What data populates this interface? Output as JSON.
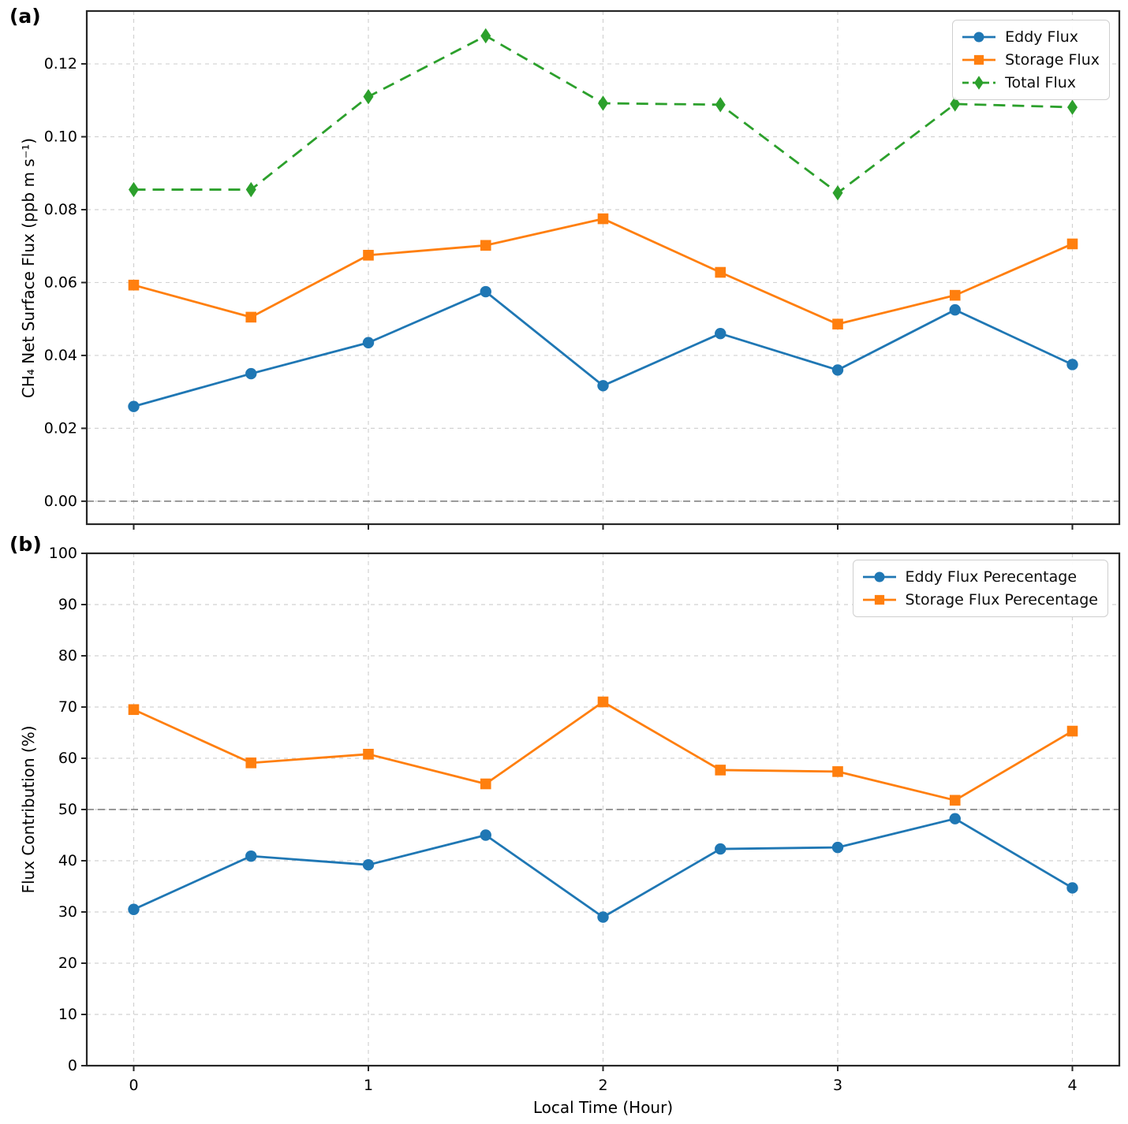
{
  "figure": {
    "panel_a_label": "(a)",
    "panel_b_label": "(b)",
    "background": "#ffffff",
    "colors": {
      "grid": "#d2d2d2",
      "ref_line": "#7a7a7a",
      "spine": "#262626",
      "text": "#000000",
      "legend_border": "#cfcfcf",
      "eddy_blue": "#1f77b4",
      "storage_orange": "#ff7f0e",
      "total_green": "#2ca02c"
    }
  },
  "chart_data": [
    {
      "type": "line",
      "panel": "a",
      "title": "",
      "xlabel": "",
      "ylabel": "CH₄ Net Surface Flux (ppb m s⁻¹)",
      "x": [
        0,
        0.5,
        1,
        1.5,
        2,
        2.5,
        3,
        3.5,
        4
      ],
      "series": [
        {
          "name": "Eddy Flux",
          "color": "#1f77b4",
          "marker": "circle",
          "line": "solid",
          "values": [
            0.026,
            0.035,
            0.0435,
            0.0575,
            0.0317,
            0.046,
            0.036,
            0.0525,
            0.0375
          ]
        },
        {
          "name": "Storage Flux",
          "color": "#ff7f0e",
          "marker": "square",
          "line": "solid",
          "values": [
            0.0593,
            0.0505,
            0.0675,
            0.0702,
            0.0775,
            0.0628,
            0.0486,
            0.0565,
            0.0706
          ]
        },
        {
          "name": "Total Flux",
          "color": "#2ca02c",
          "marker": "diamond",
          "line": "dashed",
          "values": [
            0.0855,
            0.0855,
            0.111,
            0.1277,
            0.1092,
            0.1088,
            0.0846,
            0.109,
            0.1081
          ]
        }
      ],
      "xlim": [
        -0.2,
        4.2
      ],
      "ylim": [
        -0.0063,
        0.1345
      ],
      "xticks": [
        0,
        1,
        2,
        3,
        4
      ],
      "xtick_labels": null,
      "yticks": [
        0,
        0.02,
        0.04,
        0.06,
        0.08,
        0.1,
        0.12
      ],
      "ytick_labels": [
        "0.00",
        "0.02",
        "0.04",
        "0.06",
        "0.08",
        "0.10",
        "0.12"
      ],
      "ref_line_y": 0,
      "grid": true,
      "legend_position": "upper right"
    },
    {
      "type": "line",
      "panel": "b",
      "title": "",
      "xlabel": "Local Time (Hour)",
      "ylabel": "Flux Contribution (%)",
      "x": [
        0,
        0.5,
        1,
        1.5,
        2,
        2.5,
        3,
        3.5,
        4
      ],
      "series": [
        {
          "name": "Eddy Flux Perecentage",
          "color": "#1f77b4",
          "marker": "circle",
          "line": "solid",
          "values": [
            30.5,
            40.9,
            39.2,
            45.0,
            29.0,
            42.3,
            42.6,
            48.2,
            34.7
          ]
        },
        {
          "name": "Storage Flux Perecentage",
          "color": "#ff7f0e",
          "marker": "square",
          "line": "solid",
          "values": [
            69.5,
            59.1,
            60.8,
            55.0,
            71.0,
            57.7,
            57.4,
            51.8,
            65.3
          ]
        }
      ],
      "xlim": [
        -0.2,
        4.2
      ],
      "ylim": [
        0,
        100
      ],
      "xticks": [
        0,
        1,
        2,
        3,
        4
      ],
      "xtick_labels": [
        "0",
        "1",
        "2",
        "3",
        "4"
      ],
      "yticks": [
        0,
        10,
        20,
        30,
        40,
        50,
        60,
        70,
        80,
        90,
        100
      ],
      "ytick_labels": [
        "0",
        "10",
        "20",
        "30",
        "40",
        "50",
        "60",
        "70",
        "80",
        "90",
        "100"
      ],
      "ref_line_y": 50,
      "grid": true,
      "legend_position": "upper right"
    }
  ]
}
